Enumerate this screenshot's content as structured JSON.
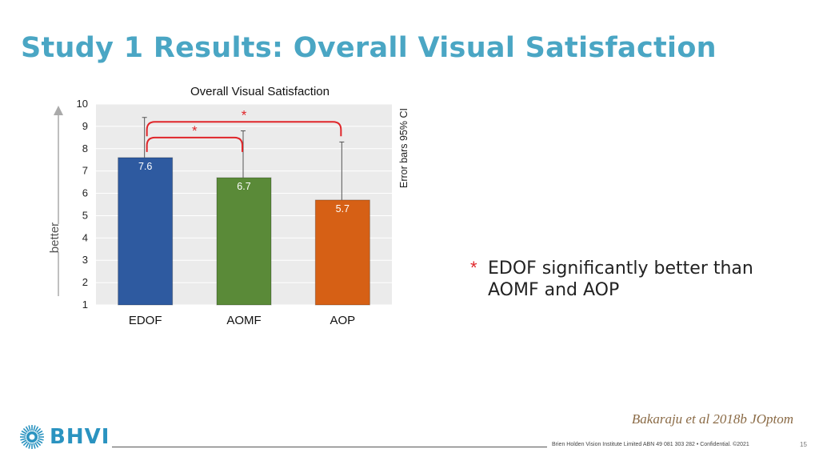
{
  "slide": {
    "title": "Study 1 Results: Overall Visual Satisfaction",
    "note_marker": "*",
    "note_text": "EDOF significantly better than AOMF and AOP",
    "citation": "Bakaraju et al 2018b JOptom",
    "logo_text": "BHVI",
    "footer": "Brien Holden Vision Institute Limited ABN 49 081 303 282 • Confidential. ©2021",
    "page_number": "15"
  },
  "colors": {
    "title": "#4aa6c4",
    "significance": "#e0262a",
    "logo": "#2a93c0"
  },
  "chart_data": {
    "type": "bar",
    "title": "Overall Visual Satisfaction",
    "ylabel": "better",
    "right_label": "Error bars 95% CI",
    "categories": [
      "EDOF",
      "AOMF",
      "AOP"
    ],
    "values": [
      7.6,
      6.7,
      5.7
    ],
    "data_labels": [
      "7.6",
      "6.7",
      "5.7"
    ],
    "error_upper": [
      9.4,
      8.8,
      8.3
    ],
    "colors": [
      "#2e5aa0",
      "#5a8a38",
      "#d66015"
    ],
    "ylim": [
      1,
      10
    ],
    "yticks": [
      1,
      2,
      3,
      4,
      5,
      6,
      7,
      8,
      9,
      10
    ],
    "grid": true,
    "background": "#ebebeb",
    "significance": [
      {
        "from": "EDOF",
        "to": "AOMF",
        "label": "*"
      },
      {
        "from": "EDOF",
        "to": "AOP",
        "label": "*"
      }
    ]
  }
}
